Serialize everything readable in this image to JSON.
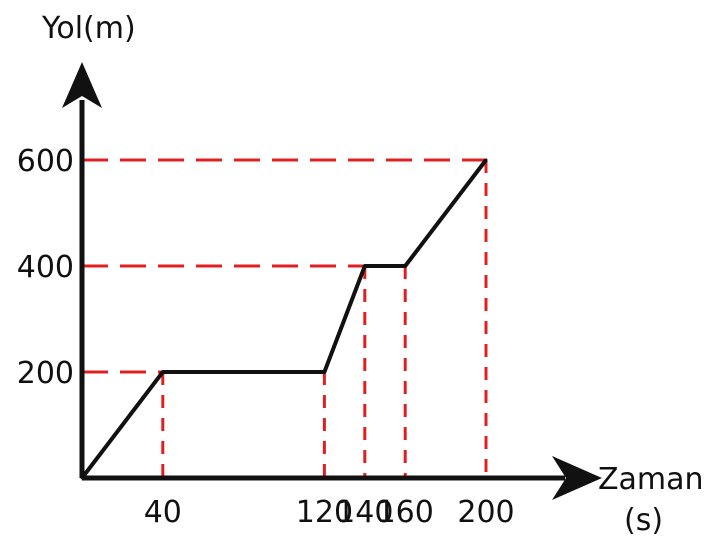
{
  "chart_data": {
    "type": "line",
    "ylabel": "Yol(m)",
    "xlabel": "Zaman",
    "xunit": "(s)",
    "x_ticks": [
      40,
      120,
      140,
      160,
      200
    ],
    "y_ticks": [
      200,
      400,
      600
    ],
    "xlim": [
      0,
      200
    ],
    "ylim": [
      0,
      600
    ],
    "grid": false,
    "guide_color": "#e02020",
    "line_color": "#111111",
    "series": [
      {
        "x": [
          0,
          40,
          120,
          140,
          160,
          200
        ],
        "y": [
          0,
          200,
          200,
          400,
          400,
          600
        ]
      }
    ]
  }
}
